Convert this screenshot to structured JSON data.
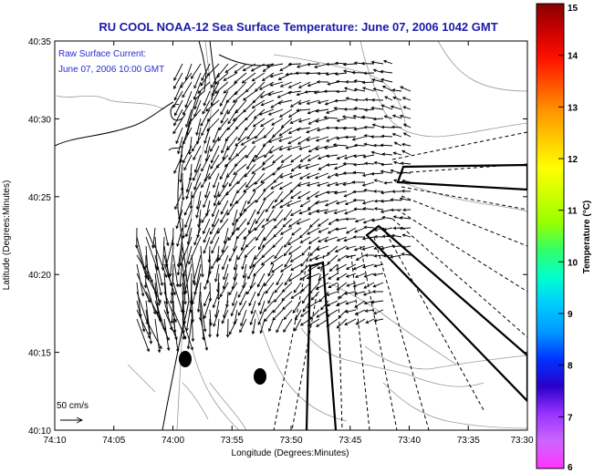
{
  "title": "RU COOL  NOAA-12  Sea Surface Temperature:  June 07, 2006 1042 GMT",
  "annotation": {
    "line1": "Raw Surface Current:",
    "line2": "June 07, 2006 10:00 GMT"
  },
  "axes": {
    "xlabel": "Longitude (Degrees:Minutes)",
    "ylabel": "Latitude (Degrees:Minutes)",
    "xticks": [
      "74:10",
      "74:05",
      "74:00",
      "73:55",
      "73:50",
      "73:45",
      "73:40",
      "73:35",
      "73:30"
    ],
    "yticks": [
      "40:35",
      "40:30",
      "40:25",
      "40:20",
      "40:15",
      "40:10"
    ]
  },
  "scale_label": "50 cm/s",
  "colorbar": {
    "label": "Temperature (°C)",
    "ticks": [
      "15",
      "14",
      "13",
      "12",
      "11",
      "10",
      "9",
      "8",
      "7",
      "6"
    ],
    "colors": [
      "#ff33ff",
      "#cc66ff",
      "#9933ff",
      "#2a00cc",
      "#0033ff",
      "#0099ff",
      "#00ccff",
      "#00ffcc",
      "#33ff66",
      "#99ff00",
      "#ccff00",
      "#ffff00",
      "#ffcc00",
      "#ff9900",
      "#ff5500",
      "#ff1100",
      "#cc0000",
      "#880000"
    ]
  }
}
